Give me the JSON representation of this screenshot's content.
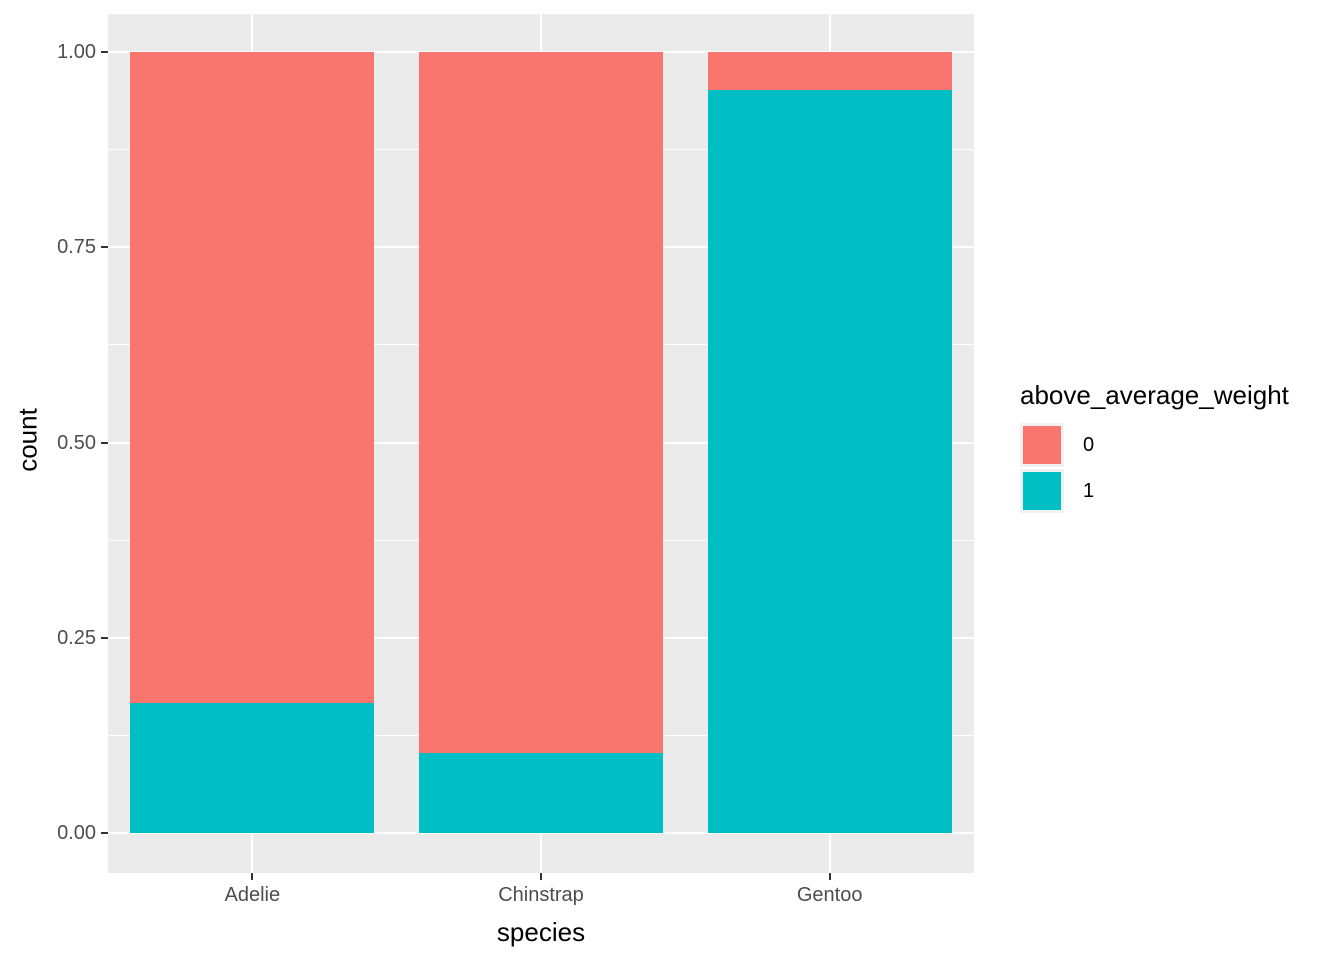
{
  "chart_data": {
    "type": "bar",
    "variant": "stacked-proportion",
    "title": "",
    "xlabel": "species",
    "ylabel": "count",
    "categories": [
      "Adelie",
      "Chinstrap",
      "Gentoo"
    ],
    "series": [
      {
        "name": "0",
        "color": "#F8766D",
        "values": [
          0.834,
          0.897,
          0.049
        ]
      },
      {
        "name": "1",
        "color": "#00BFC4",
        "values": [
          0.166,
          0.103,
          0.951
        ]
      }
    ],
    "stack_order_bottom_to_top": [
      "1",
      "0"
    ],
    "ylim": [
      0,
      1
    ],
    "y_axis": {
      "major_ticks": [
        {
          "label": "0.00",
          "value": 0
        },
        {
          "label": "0.25",
          "value": 0.25
        },
        {
          "label": "0.50",
          "value": 0.5
        },
        {
          "label": "0.75",
          "value": 0.75
        },
        {
          "label": "1.00",
          "value": 1
        }
      ],
      "minor_gridlines": [
        0.125,
        0.375,
        0.625,
        0.875
      ]
    },
    "legend": {
      "title": "above_average_weight",
      "position": "right",
      "entries": [
        {
          "label": "0",
          "color": "#F8766D"
        },
        {
          "label": "1",
          "color": "#00BFC4"
        }
      ]
    },
    "style": {
      "panel_background": "#EBEBEB",
      "gridline_color": "#FFFFFF",
      "tick_color": "#333333",
      "tick_label_color": "#4D4D4D",
      "axis_title_color": "#000000"
    }
  }
}
